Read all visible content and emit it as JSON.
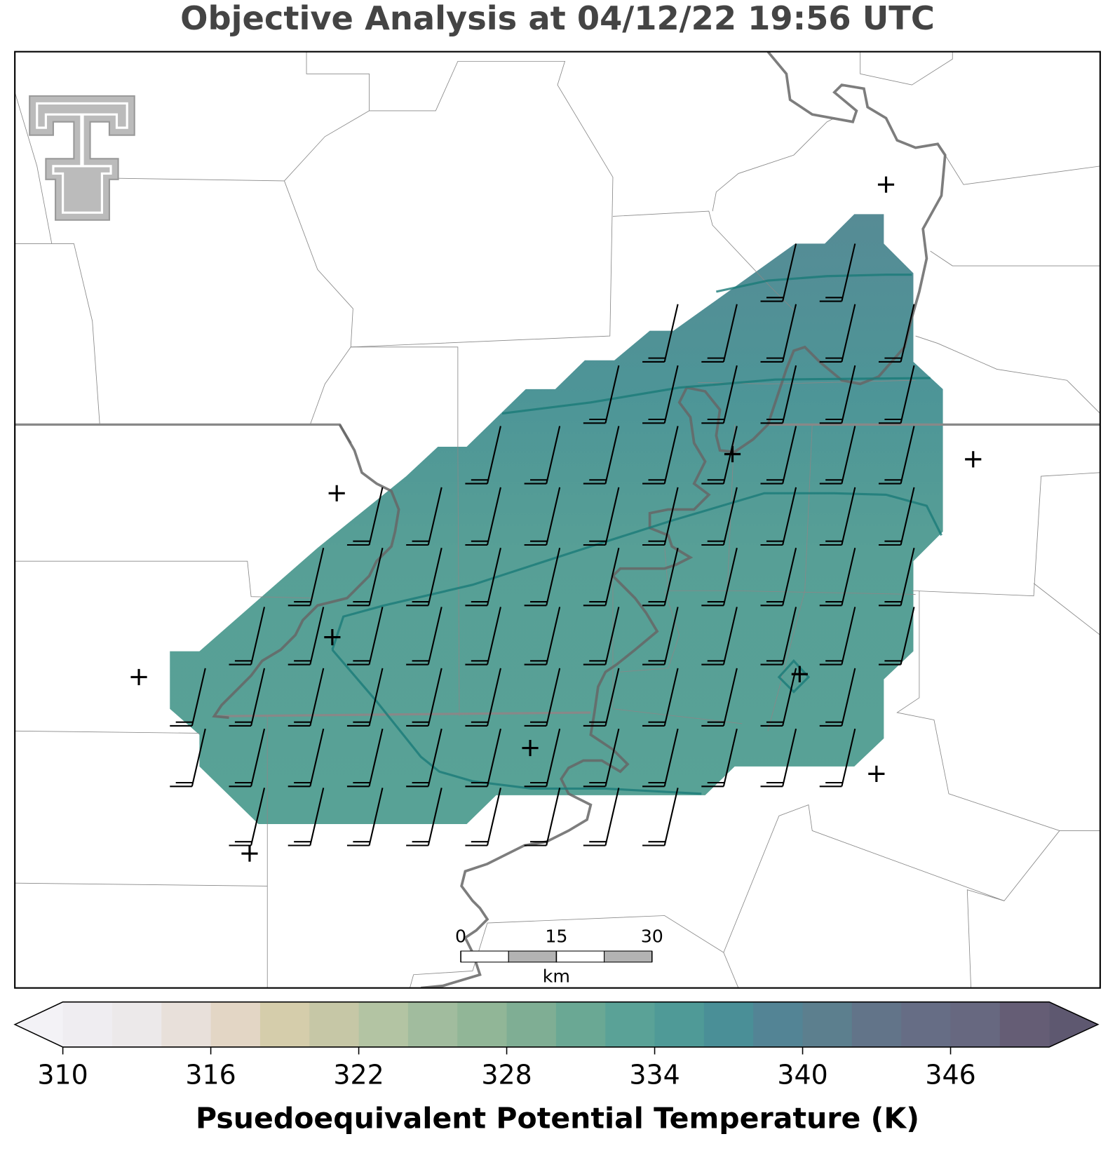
{
  "title": "Objective Analysis at 04/12/22 19:56 UTC",
  "scale_bar": {
    "ticks": [
      0,
      15,
      30
    ],
    "unit": "km"
  },
  "colorbar": {
    "label": "Psuedoequivalent Potential Temperature (K)",
    "range": [
      310,
      350
    ],
    "step": 2,
    "ticks": [
      310,
      316,
      322,
      328,
      334,
      340,
      346
    ],
    "under_color": "#f3f2f6",
    "over_color": "#5e5870",
    "colors": [
      "#efedf1",
      "#ece9ea",
      "#e8e0da",
      "#e3d6c5",
      "#d5cdab",
      "#c6c7a6",
      "#b3c4a3",
      "#a1bc9e",
      "#91b697",
      "#7fae94",
      "#6aa894",
      "#5aa297",
      "#4f9a97",
      "#4a8f97",
      "#538495",
      "#5c7f8e",
      "#627489",
      "#666d85",
      "#676880",
      "#655d75"
    ]
  }
}
